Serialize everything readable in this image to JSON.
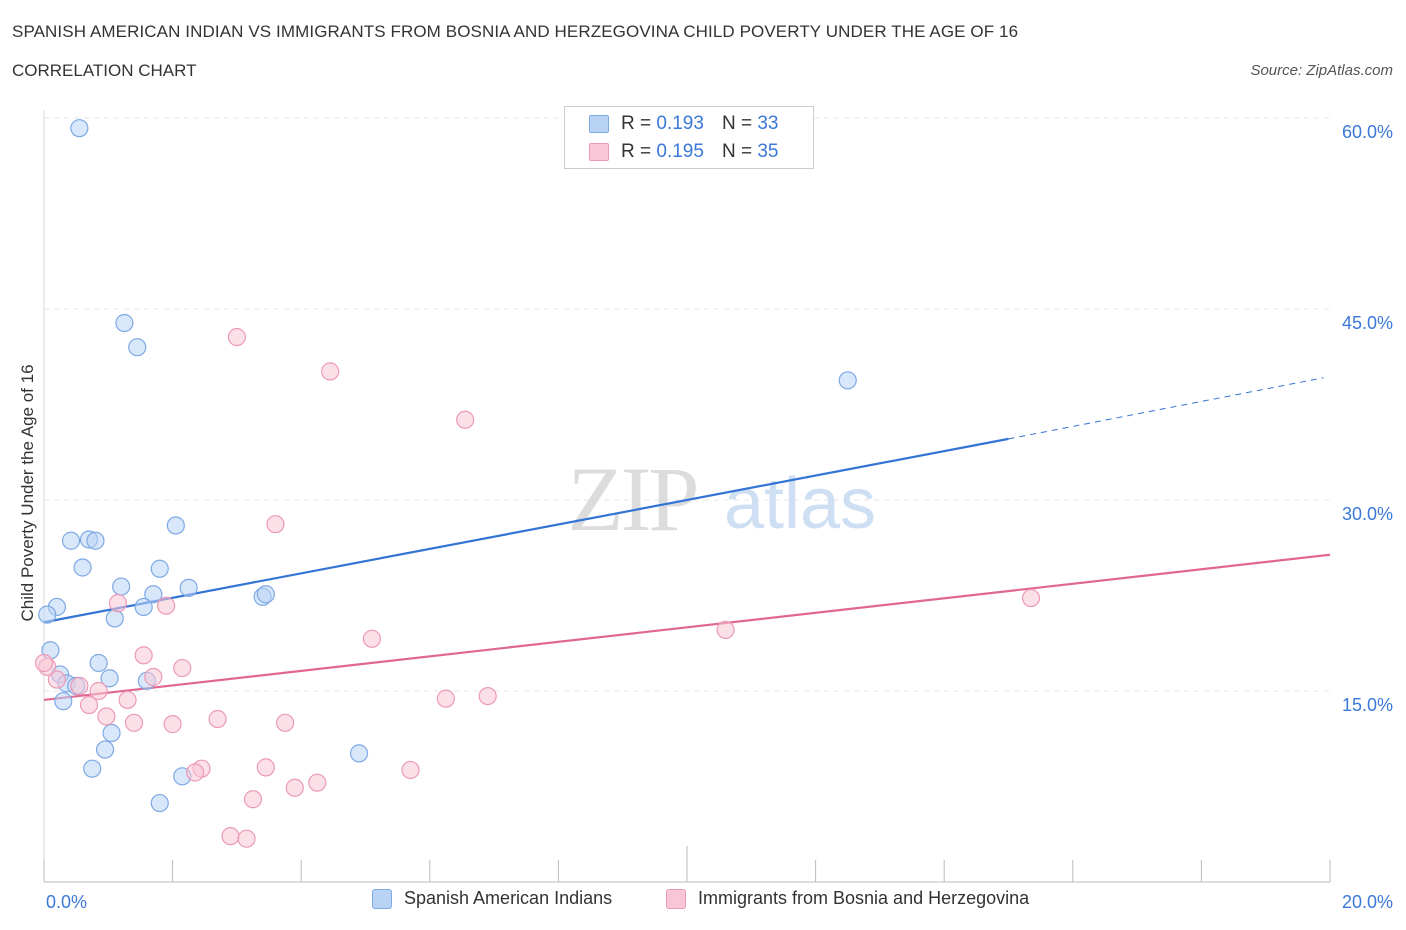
{
  "title": "SPANISH AMERICAN INDIAN VS IMMIGRANTS FROM BOSNIA AND HERZEGOVINA CHILD POVERTY UNDER THE AGE OF 16",
  "subtitle": "CORRELATION CHART",
  "source": "Source: ZipAtlas.com",
  "watermark": {
    "zip": "ZIP",
    "atlas": "atlas"
  },
  "legend_top": [
    {
      "r_label": "R =",
      "r_value": "0.193",
      "n_label": "N =",
      "n_value": "33",
      "fill": "#b9d3f5",
      "stroke": "#7faae6"
    },
    {
      "r_label": "R =",
      "r_value": "0.195",
      "n_label": "N =",
      "n_value": "35",
      "fill": "#f8c6d6",
      "stroke": "#ec9ab6"
    }
  ],
  "legend_bottom": [
    {
      "label": "Spanish American Indians",
      "fill": "#b9d3f5",
      "stroke": "#7faae6"
    },
    {
      "label": "Immigrants from Bosnia and Herzegovina",
      "fill": "#f8c6d6",
      "stroke": "#ec9ab6"
    }
  ],
  "chart_data": {
    "type": "scatter",
    "xlabel": "",
    "ylabel": "Child Poverty Under the Age of 16",
    "xlim": [
      0,
      20
    ],
    "ylim": [
      0,
      60
    ],
    "x_tick_labels": [
      {
        "value": 0,
        "label": "0.0%"
      },
      {
        "value": 20,
        "label": "20.0%"
      }
    ],
    "y_tick_labels": [
      {
        "value": 15,
        "label": "15.0%"
      },
      {
        "value": 30,
        "label": "30.0%"
      },
      {
        "value": 45,
        "label": "45.0%"
      },
      {
        "value": 60,
        "label": "60.0%"
      }
    ],
    "grid": true,
    "series": [
      {
        "name": "Spanish American Indians",
        "color": "#3474d4",
        "fill": "#b9d3f5",
        "points": [
          [
            0.55,
            59.2
          ],
          [
            1.25,
            43.9
          ],
          [
            1.45,
            42.0
          ],
          [
            12.5,
            39.4
          ],
          [
            0.42,
            26.8
          ],
          [
            0.7,
            26.9
          ],
          [
            0.8,
            26.8
          ],
          [
            2.05,
            28.0
          ],
          [
            0.6,
            24.7
          ],
          [
            1.8,
            24.6
          ],
          [
            1.2,
            23.2
          ],
          [
            2.25,
            23.1
          ],
          [
            1.7,
            22.6
          ],
          [
            3.4,
            22.4
          ],
          [
            3.45,
            22.6
          ],
          [
            0.2,
            21.6
          ],
          [
            1.55,
            21.6
          ],
          [
            0.05,
            21.0
          ],
          [
            1.1,
            20.7
          ],
          [
            0.1,
            18.2
          ],
          [
            0.85,
            17.2
          ],
          [
            0.25,
            16.3
          ],
          [
            1.02,
            16.0
          ],
          [
            1.6,
            15.8
          ],
          [
            0.35,
            15.6
          ],
          [
            0.5,
            15.4
          ],
          [
            0.3,
            14.2
          ],
          [
            1.05,
            11.7
          ],
          [
            0.95,
            10.4
          ],
          [
            4.9,
            10.1
          ],
          [
            0.75,
            8.9
          ],
          [
            2.15,
            8.3
          ],
          [
            1.8,
            6.2
          ]
        ],
        "trend": {
          "x_start": 0,
          "y_start": 20.4,
          "x_solid_end": 15.0,
          "y_solid_end": 34.8,
          "x_end": 19.9,
          "y_end": 39.6
        }
      },
      {
        "name": "Immigrants from Bosnia and Herzegovina",
        "color": "#e0678f",
        "fill": "#f8c6d6",
        "points": [
          [
            3.0,
            42.8
          ],
          [
            4.45,
            40.1
          ],
          [
            6.55,
            36.3
          ],
          [
            3.6,
            28.1
          ],
          [
            15.35,
            22.3
          ],
          [
            1.15,
            21.9
          ],
          [
            1.9,
            21.7
          ],
          [
            10.6,
            19.8
          ],
          [
            5.1,
            19.1
          ],
          [
            1.55,
            17.8
          ],
          [
            2.15,
            16.8
          ],
          [
            1.7,
            16.1
          ],
          [
            0.2,
            15.9
          ],
          [
            0.55,
            15.4
          ],
          [
            0.85,
            15.0
          ],
          [
            6.9,
            14.6
          ],
          [
            6.25,
            14.4
          ],
          [
            1.3,
            14.3
          ],
          [
            0.7,
            13.9
          ],
          [
            0.97,
            13.0
          ],
          [
            2.7,
            12.8
          ],
          [
            1.4,
            12.5
          ],
          [
            2.0,
            12.4
          ],
          [
            3.75,
            12.5
          ],
          [
            2.45,
            8.9
          ],
          [
            2.35,
            8.6
          ],
          [
            3.45,
            9.0
          ],
          [
            5.7,
            8.8
          ],
          [
            4.25,
            7.8
          ],
          [
            3.9,
            7.4
          ],
          [
            3.25,
            6.5
          ],
          [
            2.9,
            3.6
          ],
          [
            3.15,
            3.4
          ],
          [
            0.05,
            16.9
          ],
          [
            0.0,
            17.2
          ]
        ],
        "trend": {
          "x_start": 0,
          "y_start": 14.3,
          "x_end": 20.0,
          "y_end": 25.7
        }
      }
    ]
  }
}
